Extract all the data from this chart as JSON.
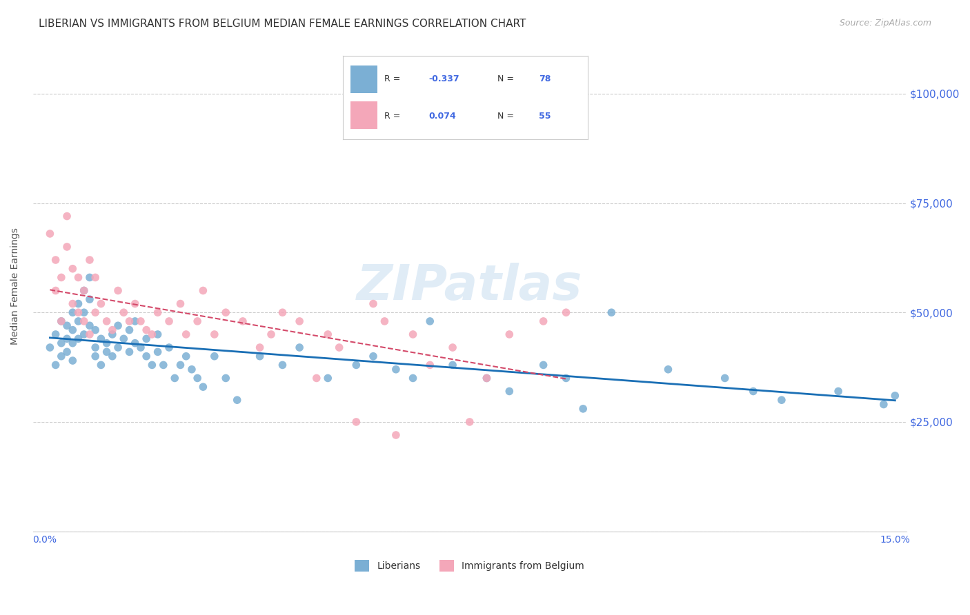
{
  "title": "LIBERIAN VS IMMIGRANTS FROM BELGIUM MEDIAN FEMALE EARNINGS CORRELATION CHART",
  "source": "Source: ZipAtlas.com",
  "ylabel": "Median Female Earnings",
  "xlim": [
    -0.002,
    0.152
  ],
  "ylim": [
    0,
    112000
  ],
  "yticks": [
    0,
    25000,
    50000,
    75000,
    100000
  ],
  "ytick_labels": [
    "",
    "$25,000",
    "$50,000",
    "$75,000",
    "$100,000"
  ],
  "background_color": "#ffffff",
  "grid_color": "#cccccc",
  "series1_label": "Liberians",
  "series1_color": "#7bafd4",
  "series1_line_color": "#1a6fb5",
  "series1_R": "-0.337",
  "series1_N": "78",
  "series2_label": "Immigrants from Belgium",
  "series2_color": "#f4a7b9",
  "series2_line_color": "#d44a6a",
  "series2_R": "0.074",
  "series2_N": "55",
  "legend_R_color": "#4169e1",
  "axis_color": "#4169e1",
  "watermark": "ZIPatlas",
  "series1_x": [
    0.001,
    0.002,
    0.002,
    0.003,
    0.003,
    0.003,
    0.004,
    0.004,
    0.004,
    0.005,
    0.005,
    0.005,
    0.005,
    0.006,
    0.006,
    0.006,
    0.007,
    0.007,
    0.007,
    0.008,
    0.008,
    0.008,
    0.009,
    0.009,
    0.009,
    0.01,
    0.01,
    0.011,
    0.011,
    0.012,
    0.012,
    0.013,
    0.013,
    0.014,
    0.015,
    0.015,
    0.016,
    0.016,
    0.017,
    0.018,
    0.018,
    0.019,
    0.02,
    0.02,
    0.021,
    0.022,
    0.023,
    0.024,
    0.025,
    0.026,
    0.027,
    0.028,
    0.03,
    0.032,
    0.034,
    0.038,
    0.042,
    0.045,
    0.05,
    0.055,
    0.058,
    0.062,
    0.065,
    0.068,
    0.072,
    0.078,
    0.082,
    0.088,
    0.092,
    0.095,
    0.1,
    0.11,
    0.12,
    0.125,
    0.13,
    0.14,
    0.148,
    0.15
  ],
  "series1_y": [
    42000,
    45000,
    38000,
    48000,
    43000,
    40000,
    47000,
    44000,
    41000,
    50000,
    46000,
    43000,
    39000,
    52000,
    48000,
    44000,
    55000,
    50000,
    45000,
    58000,
    53000,
    47000,
    42000,
    46000,
    40000,
    44000,
    38000,
    41000,
    43000,
    45000,
    40000,
    47000,
    42000,
    44000,
    46000,
    41000,
    43000,
    48000,
    42000,
    44000,
    40000,
    38000,
    45000,
    41000,
    38000,
    42000,
    35000,
    38000,
    40000,
    37000,
    35000,
    33000,
    40000,
    35000,
    30000,
    40000,
    38000,
    42000,
    35000,
    38000,
    40000,
    37000,
    35000,
    48000,
    38000,
    35000,
    32000,
    38000,
    35000,
    28000,
    50000,
    37000,
    35000,
    32000,
    30000,
    32000,
    29000,
    31000
  ],
  "series2_x": [
    0.001,
    0.002,
    0.002,
    0.003,
    0.003,
    0.004,
    0.004,
    0.005,
    0.005,
    0.006,
    0.006,
    0.007,
    0.007,
    0.008,
    0.008,
    0.009,
    0.009,
    0.01,
    0.011,
    0.012,
    0.013,
    0.014,
    0.015,
    0.016,
    0.017,
    0.018,
    0.019,
    0.02,
    0.022,
    0.024,
    0.025,
    0.027,
    0.028,
    0.03,
    0.032,
    0.035,
    0.038,
    0.04,
    0.042,
    0.045,
    0.048,
    0.05,
    0.052,
    0.055,
    0.058,
    0.06,
    0.062,
    0.065,
    0.068,
    0.072,
    0.075,
    0.078,
    0.082,
    0.088,
    0.092
  ],
  "series2_y": [
    68000,
    62000,
    55000,
    58000,
    48000,
    72000,
    65000,
    60000,
    52000,
    58000,
    50000,
    55000,
    48000,
    62000,
    45000,
    58000,
    50000,
    52000,
    48000,
    46000,
    55000,
    50000,
    48000,
    52000,
    48000,
    46000,
    45000,
    50000,
    48000,
    52000,
    45000,
    48000,
    55000,
    45000,
    50000,
    48000,
    42000,
    45000,
    50000,
    48000,
    35000,
    45000,
    42000,
    25000,
    52000,
    48000,
    22000,
    45000,
    38000,
    42000,
    25000,
    35000,
    45000,
    48000,
    50000
  ],
  "title_fontsize": 11,
  "label_fontsize": 10,
  "tick_fontsize": 10,
  "source_fontsize": 9
}
